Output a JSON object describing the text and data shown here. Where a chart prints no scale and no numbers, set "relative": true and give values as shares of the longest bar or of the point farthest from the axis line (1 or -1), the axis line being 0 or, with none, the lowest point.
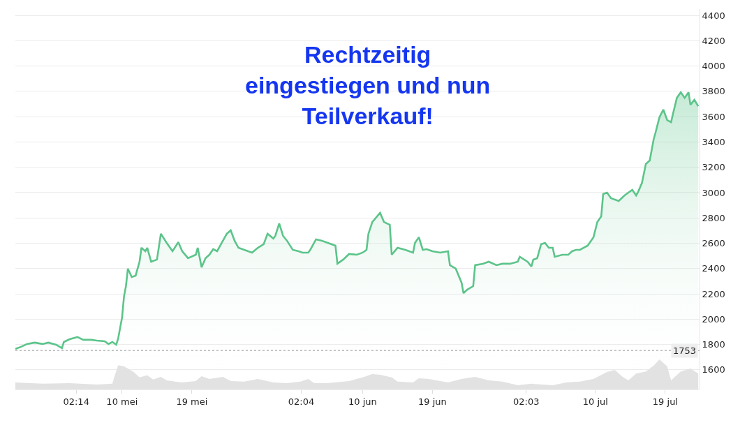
{
  "chart_data": [
    {
      "type": "area",
      "title": "Rechtzeitig\neingestiegen und nun\nTeilverkauf!",
      "grid": "y",
      "x": [
        "--04-26T06:00",
        "--04-27T00:00",
        "--04-27T18:00",
        "--04-28T18:00",
        "--04-29T18:00",
        "--04-30T12:00",
        "--05-01T12:00",
        "--05-02T06:00",
        "--05-02T12:00",
        "--05-03T06:00",
        "--05-04T06:00",
        "--05-05T00:00",
        "--05-06T00:00",
        "--05-06T18:00",
        "--05-07T18:00",
        "--05-08T06:00",
        "--05-08T18:00",
        "--05-09T06:00",
        "--05-09T12:00",
        "--05-09T18:00",
        "--05-10T00:00",
        "--05-10T06:00",
        "--05-10T12:00",
        "--05-10T18:00",
        "--05-11T06:00",
        "--05-11T18:00",
        "--05-12T06:00",
        "--05-12T12:00",
        "--05-13T00:00",
        "--05-13T06:00",
        "--05-13T18:00",
        "--05-14T12:00",
        "--05-15T00:00",
        "--05-15T18:00",
        "--05-16T12:00",
        "--05-17T06:00",
        "--05-17T18:00",
        "--05-18T12:00",
        "--05-19T12:00",
        "--05-19T18:00",
        "--05-20T06:00",
        "--05-20T18:00",
        "--05-21T06:00",
        "--05-21T18:00",
        "--05-22T06:00",
        "--05-22T18:00",
        "--05-23T12:00",
        "--05-24T00:00",
        "--05-24T12:00",
        "--05-25T00:00",
        "--05-25T18:00",
        "--05-26T18:00",
        "--05-27T12:00",
        "--05-28T06:00",
        "--05-28T18:00",
        "--05-29T12:00",
        "--05-29T18:00",
        "--05-30T06:00",
        "--05-30T18:00",
        "--05-31T06:00",
        "--06-01T00:00",
        "--06-01T18:00",
        "--06-02T06:00",
        "--06-03T00:00",
        "--06-03T06:00",
        "--06-04T00:00",
        "--06-04T18:00",
        "--06-05T12:00",
        "--06-06T12:00",
        "--06-06T18:00",
        "--06-07T12:00",
        "--06-08T06:00",
        "--06-09T06:00",
        "--06-10T00:00",
        "--06-10T12:00",
        "--06-10T18:00",
        "--06-11T06:00",
        "--06-12T06:00",
        "--06-12T18:00",
        "--06-13T12:00",
        "--06-13T18:00",
        "--06-14T12:00",
        "--06-15T12:00",
        "--06-16T12:00",
        "--06-16T18:00",
        "--06-17T06:00",
        "--06-17T18:00",
        "--06-18T06:00",
        "--06-19T00:00",
        "--06-20T00:00",
        "--06-21T00:00",
        "--06-21T06:00",
        "--06-22T00:00",
        "--06-22T18:00",
        "--06-23T00:00",
        "--06-23T12:00",
        "--06-24T06:00",
        "--06-24T12:00",
        "--06-25T12:00",
        "--06-26T06:00",
        "--06-27T06:00",
        "--06-28T00:00",
        "--06-29T00:00",
        "--06-30T00:00",
        "--06-30T06:00",
        "--07-01T06:00",
        "--07-01T18:00",
        "--07-02T00:00",
        "--07-02T12:00",
        "--07-03T00:00",
        "--07-03T12:00",
        "--07-04T00:00",
        "--07-04T12:00",
        "--07-04T18:00",
        "--07-05T18:00",
        "--07-06T12:00",
        "--07-07T00:00",
        "--07-07T12:00",
        "--07-08T00:00",
        "--07-09T00:00",
        "--07-09T18:00",
        "--07-10T06:00",
        "--07-10T18:00",
        "--07-11T00:00",
        "--07-11T12:00",
        "--07-12T00:00",
        "--07-13T00:00",
        "--07-13T18:00",
        "--07-14T18:00",
        "--07-15T06:00",
        "--07-15T12:00",
        "--07-16T00:00",
        "--07-16T12:00",
        "--07-17T00:00",
        "--07-17T12:00",
        "--07-17T18:00",
        "--07-18T06:00",
        "--07-18T18:00",
        "--07-19T06:00",
        "--07-19T18:00",
        "--07-20T00:00",
        "--07-20T12:00",
        "--07-21T00:00",
        "--07-21T12:00",
        "--07-22T00:00",
        "--07-22T06:00",
        "--07-22T18:00",
        "--07-23T06:00"
      ],
      "series": [
        {
          "color": "#5cc48a",
          "values": [
            1765,
            1782,
            1804,
            1815,
            1804,
            1815,
            1798,
            1771,
            1820,
            1842,
            1859,
            1837,
            1837,
            1831,
            1826,
            1804,
            1820,
            1798,
            1848,
            1931,
            2013,
            2179,
            2261,
            2399,
            2333,
            2344,
            2454,
            2564,
            2537,
            2564,
            2454,
            2471,
            2675,
            2603,
            2537,
            2609,
            2537,
            2482,
            2509,
            2564,
            2410,
            2482,
            2509,
            2553,
            2537,
            2592,
            2675,
            2702,
            2620,
            2564,
            2548,
            2526,
            2564,
            2592,
            2675,
            2637,
            2658,
            2757,
            2658,
            2620,
            2548,
            2537,
            2526,
            2526,
            2548,
            2631,
            2620,
            2603,
            2581,
            2438,
            2471,
            2515,
            2509,
            2526,
            2548,
            2675,
            2768,
            2840,
            2768,
            2746,
            2509,
            2564,
            2548,
            2526,
            2603,
            2647,
            2548,
            2553,
            2537,
            2526,
            2537,
            2427,
            2399,
            2289,
            2206,
            2234,
            2261,
            2427,
            2438,
            2454,
            2427,
            2438,
            2438,
            2454,
            2493,
            2454,
            2416,
            2471,
            2482,
            2592,
            2603,
            2564,
            2564,
            2493,
            2509,
            2509,
            2537,
            2548,
            2548,
            2581,
            2647,
            2768,
            2812,
            2989,
            3000,
            2956,
            2934,
            2978,
            3022,
            2978,
            3005,
            3077,
            3226,
            3253,
            3419,
            3474,
            3595,
            3656,
            3573,
            3556,
            3623,
            3749,
            3793,
            3749,
            3793,
            3694,
            3733,
            3683
          ]
        }
      ],
      "xlim": [
        "--04-26T06:00",
        "--07-23T10:00"
      ],
      "xticks": [
        {
          "value": "--05-04T02:14",
          "label": "02:14"
        },
        {
          "value": "--05-10",
          "label": "10 mei"
        },
        {
          "value": "--05-19",
          "label": "19 mei"
        },
        {
          "value": "--06-02T02:04",
          "label": "02:04"
        },
        {
          "value": "--06-10",
          "label": "10 jun"
        },
        {
          "value": "--06-19",
          "label": "19 jun"
        },
        {
          "value": "--07-01T02:03",
          "label": "02:03"
        },
        {
          "value": "--07-10",
          "label": "10 jul"
        },
        {
          "value": "--07-19",
          "label": "19 jul"
        }
      ],
      "tick_labels": "y",
      "ylim": [
        1445,
        4450
      ],
      "yticks": [
        1600,
        1800,
        2000,
        2200,
        2400,
        2600,
        2800,
        3000,
        3200,
        3400,
        3600,
        3800,
        4000,
        4200,
        4400
      ],
      "ref_lines": [
        {
          "axis": "y",
          "value": 1753,
          "label": "1753",
          "color": "#bbbbbb",
          "line_style": "dotted"
        }
      ]
    },
    {
      "type": "area",
      "relative": true,
      "tick_labels": "x",
      "xlim": [
        "--04-26T06:00",
        "--07-23T10:00"
      ],
      "xticks": [
        {
          "value": "--05-04T02:14",
          "label": "02:14"
        },
        {
          "value": "--05-10",
          "label": "10 mei"
        },
        {
          "value": "--05-19",
          "label": "19 mei"
        },
        {
          "value": "--06-02T02:04",
          "label": "02:04"
        },
        {
          "value": "--06-10",
          "label": "10 jun"
        },
        {
          "value": "--06-19",
          "label": "19 jun"
        },
        {
          "value": "--07-01T02:03",
          "label": "02:03"
        },
        {
          "value": "--07-10",
          "label": "10 jul"
        },
        {
          "value": "--07-19",
          "label": "19 jul"
        }
      ],
      "x": [
        "--04-26T06:00",
        "--04-29T18:00",
        "--05-03T06:00",
        "--05-06T18:00",
        "--05-08T18:00",
        "--05-09T00:00",
        "--05-09T12:00",
        "--05-10T06:00",
        "--05-10T18:00",
        "--05-11T12:00",
        "--05-12T06:00",
        "--05-13T06:00",
        "--05-14T00:00",
        "--05-15T00:00",
        "--05-15T18:00",
        "--05-17T18:00",
        "--05-19T12:00",
        "--05-20T06:00",
        "--05-21T06:00",
        "--05-23T00:00",
        "--05-24T00:00",
        "--05-25T18:00",
        "--05-27T12:00",
        "--05-29T12:00",
        "--05-31T06:00",
        "--06-02T00:00",
        "--06-03T00:00",
        "--06-03T18:00",
        "--06-05T12:00",
        "--06-08T06:00",
        "--06-10T00:00",
        "--06-11T06:00",
        "--06-12T06:00",
        "--06-13T18:00",
        "--06-14T12:00",
        "--06-16T12:00",
        "--06-17T06:00",
        "--06-18T12:00",
        "--06-21T00:00",
        "--06-22T18:00",
        "--06-24T12:00",
        "--06-26T06:00",
        "--06-28T00:00",
        "--06-30T00:00",
        "--07-01T18:00",
        "--07-04T12:00",
        "--07-06T06:00",
        "--07-08T00:00",
        "--07-09T18:00",
        "--07-11T12:00",
        "--07-12T12:00",
        "--07-13T12:00",
        "--07-14T06:00",
        "--07-15T06:00",
        "--07-16T12:00",
        "--07-17T12:00",
        "--07-18T06:00",
        "--07-19T06:00",
        "--07-19T18:00",
        "--07-21T00:00",
        "--07-22T06:00",
        "--07-23T06:00"
      ],
      "series": [
        {
          "color": "#e2e2e2",
          "values": [
            0.23,
            0.19,
            0.21,
            0.16,
            0.19,
            0.42,
            0.81,
            0.77,
            0.7,
            0.58,
            0.4,
            0.47,
            0.33,
            0.42,
            0.3,
            0.23,
            0.28,
            0.44,
            0.35,
            0.42,
            0.28,
            0.26,
            0.35,
            0.23,
            0.21,
            0.26,
            0.35,
            0.21,
            0.21,
            0.28,
            0.4,
            0.51,
            0.49,
            0.4,
            0.26,
            0.23,
            0.37,
            0.35,
            0.23,
            0.35,
            0.42,
            0.3,
            0.26,
            0.14,
            0.19,
            0.14,
            0.23,
            0.26,
            0.35,
            0.58,
            0.65,
            0.42,
            0.3,
            0.53,
            0.6,
            0.79,
            1,
            0.77,
            0.3,
            0.6,
            0.7,
            0.53
          ]
        }
      ]
    }
  ]
}
